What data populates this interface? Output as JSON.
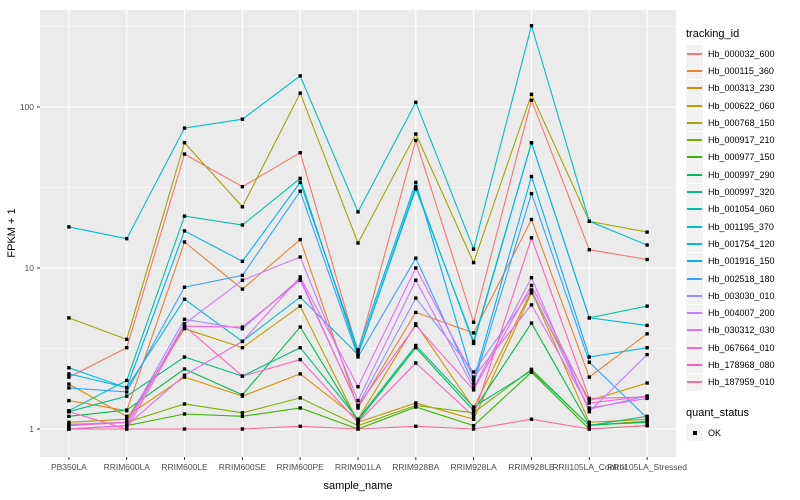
{
  "chart_data": {
    "type": "line",
    "title": "",
    "xlabel": "sample_name",
    "ylabel": "FPKM + 1",
    "y_scale": "log10",
    "y_ticks": [
      1,
      10,
      100
    ],
    "y_minor_ticks": [
      3.162,
      31.62,
      316.2
    ],
    "ylim": [
      0.67,
      400
    ],
    "grid": true,
    "panel_bg": "#EBEBEB",
    "grid_color": "#FFFFFF",
    "marker": "black-square",
    "categories": [
      "PB350LA",
      "RRIM600LA",
      "RRIM600LE",
      "RRIM600SE",
      "RRIM600PE",
      "RRIM901LA",
      "RRIM928BA",
      "RRIM928LA",
      "RRIM928LE",
      "RRII105LA_Control",
      "RRII105LA_Stressed"
    ],
    "legend": {
      "title": "tracking_id",
      "position": "right"
    },
    "quant_legend": {
      "title": "quant_status",
      "items": [
        {
          "label": "OK",
          "marker": "black-square"
        }
      ]
    },
    "series": [
      {
        "name": "Hb_000032_600",
        "color": "#F8766D",
        "values": [
          2.1,
          3.2,
          51,
          32,
          52,
          3.0,
          62,
          4.6,
          110,
          13,
          11.3
        ]
      },
      {
        "name": "Hb_000115_360",
        "color": "#EA8331",
        "values": [
          1.5,
          1.3,
          14.5,
          7.4,
          15,
          1.35,
          5.3,
          3.95,
          20,
          2.1,
          3.9
        ]
      },
      {
        "name": "Hb_000313_230",
        "color": "#D89000",
        "values": [
          1.9,
          1.2,
          2.1,
          1.6,
          2.2,
          1.15,
          4.5,
          1.35,
          7.2,
          1.1,
          1.15
        ]
      },
      {
        "name": "Hb_000622_060",
        "color": "#C09B00",
        "values": [
          1.1,
          1.15,
          4.2,
          3.2,
          5.8,
          1.1,
          1.45,
          1.15,
          7.0,
          1.5,
          1.93
        ]
      },
      {
        "name": "Hb_000768_150",
        "color": "#A3A500",
        "values": [
          4.9,
          3.6,
          60,
          24,
          122,
          14.3,
          68,
          10.8,
          120,
          19.5,
          16.7
        ]
      },
      {
        "name": "Hb_000917_210",
        "color": "#7CAE00",
        "values": [
          1.05,
          1.1,
          1.43,
          1.26,
          1.56,
          1.05,
          1.4,
          1.26,
          2.35,
          1.05,
          1.12
        ]
      },
      {
        "name": "Hb_000977_150",
        "color": "#39B600",
        "values": [
          1.0,
          1.05,
          1.24,
          1.2,
          1.35,
          1.0,
          1.37,
          1.05,
          2.25,
          1.0,
          1.05
        ]
      },
      {
        "name": "Hb_000997_290",
        "color": "#00BB4E",
        "values": [
          1.2,
          1.31,
          2.36,
          1.63,
          4.3,
          1.12,
          3.2,
          1.3,
          4.55,
          1.06,
          1.1
        ]
      },
      {
        "name": "Hb_000997_320",
        "color": "#00BF7D",
        "values": [
          1.28,
          1.6,
          2.8,
          2.13,
          3.2,
          1.15,
          3.3,
          1.37,
          2.3,
          1.05,
          1.2
        ]
      },
      {
        "name": "Hb_001054_060",
        "color": "#00C1A3",
        "values": [
          1.3,
          2.0,
          21,
          18.5,
          36,
          2.9,
          31,
          3.5,
          60,
          4.9,
          5.8
        ]
      },
      {
        "name": "Hb_001195_370",
        "color": "#00BFC4",
        "values": [
          18,
          15.2,
          74,
          84,
          156,
          22.3,
          107,
          13.1,
          320,
          19.5,
          13.9
        ]
      },
      {
        "name": "Hb_001754_120",
        "color": "#00BAE0",
        "values": [
          2.4,
          1.8,
          6.4,
          3.5,
          6.6,
          2.9,
          32,
          3.4,
          60,
          4.9,
          4.4
        ]
      },
      {
        "name": "Hb_001916_150",
        "color": "#00B0F6",
        "values": [
          2.2,
          1.81,
          17,
          11,
          34,
          3.1,
          34,
          2.0,
          37,
          2.8,
          3.2
        ]
      },
      {
        "name": "Hb_002518_180",
        "color": "#35A2FF",
        "values": [
          1.8,
          1.7,
          7.6,
          9.0,
          30,
          2.8,
          11.5,
          1.9,
          29,
          2.6,
          1.17
        ]
      },
      {
        "name": "Hb_003030_010",
        "color": "#9590FF",
        "values": [
          1.07,
          1.1,
          4.8,
          4.2,
          8.6,
          1.4,
          6.5,
          2.26,
          7.3,
          1.33,
          1.6
        ]
      },
      {
        "name": "Hb_004007_200",
        "color": "#C77CFF",
        "values": [
          1.0,
          1.05,
          4.5,
          8.4,
          11.7,
          1.5,
          8.4,
          1.8,
          8.7,
          1.28,
          2.9
        ]
      },
      {
        "name": "Hb_030312_030",
        "color": "#E76BF3",
        "values": [
          1.0,
          1.05,
          2.16,
          3.5,
          8.8,
          1.83,
          10,
          2.1,
          5.9,
          1.35,
          1.55
        ]
      },
      {
        "name": "Hb_067664_010",
        "color": "#FA62DB",
        "values": [
          1.05,
          1.1,
          4.35,
          4.3,
          8.4,
          1.4,
          4.4,
          1.75,
          7.8,
          1.45,
          1.6
        ]
      },
      {
        "name": "Hb_178968_080",
        "color": "#FF62BC",
        "values": [
          1.28,
          1.0,
          4.35,
          2.13,
          2.7,
          1.1,
          2.57,
          1.2,
          15.4,
          1.55,
          1.58
        ]
      },
      {
        "name": "Hb_187959_010",
        "color": "#FF6A98",
        "values": [
          1.0,
          1.0,
          1.0,
          1.0,
          1.04,
          1.0,
          1.04,
          1.0,
          1.15,
          1.0,
          1.05
        ]
      }
    ]
  }
}
